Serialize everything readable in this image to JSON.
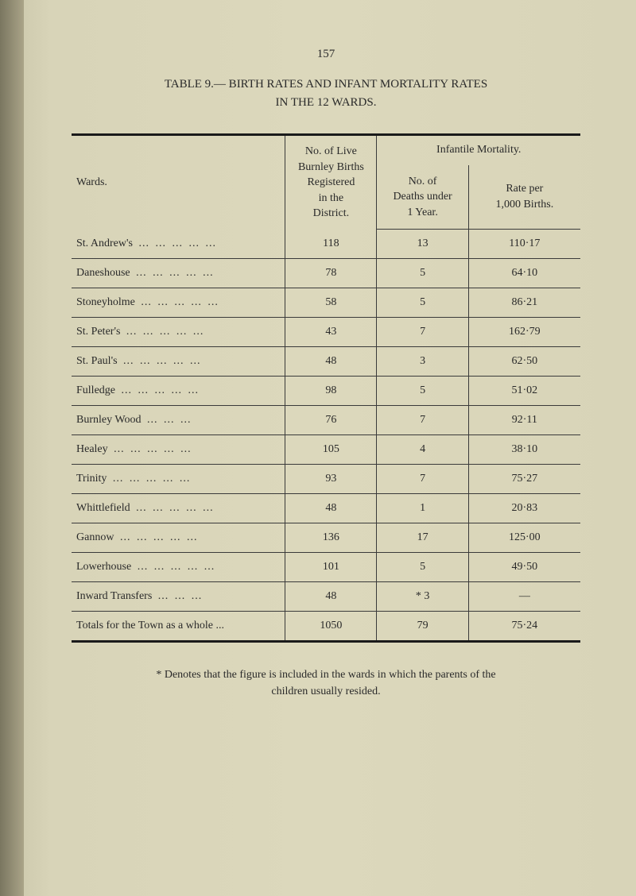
{
  "page_number": "157",
  "title_line1": "TABLE 9.— BIRTH RATES AND INFANT MORTALITY RATES",
  "title_line2": "IN THE 12 WARDS.",
  "headers": {
    "wards": "Wards.",
    "live": "No. of Live\nBurnley Births\nRegistered\nin the\nDistrict.",
    "infantile": "Infantile Mortality.",
    "deaths": "No. of\nDeaths under\n1 Year.",
    "rate": "Rate per\n1,000 Births."
  },
  "rows": [
    {
      "ward": "St. Andrew's",
      "live": "118",
      "deaths": "13",
      "rate": "110·17"
    },
    {
      "ward": "Daneshouse",
      "live": "78",
      "deaths": "5",
      "rate": "64·10"
    },
    {
      "ward": "Stoneyholme",
      "live": "58",
      "deaths": "5",
      "rate": "86·21"
    },
    {
      "ward": "St. Peter's",
      "live": "43",
      "deaths": "7",
      "rate": "162·79"
    },
    {
      "ward": "St. Paul's",
      "live": "48",
      "deaths": "3",
      "rate": "62·50"
    },
    {
      "ward": "Fulledge",
      "live": "98",
      "deaths": "5",
      "rate": "51·02"
    },
    {
      "ward": "Burnley Wood",
      "live": "76",
      "deaths": "7",
      "rate": "92·11"
    },
    {
      "ward": "Healey",
      "live": "105",
      "deaths": "4",
      "rate": "38·10"
    },
    {
      "ward": "Trinity",
      "live": "93",
      "deaths": "7",
      "rate": "75·27"
    },
    {
      "ward": "Whittlefield",
      "live": "48",
      "deaths": "1",
      "rate": "20·83"
    },
    {
      "ward": "Gannow",
      "live": "136",
      "deaths": "17",
      "rate": "125·00"
    },
    {
      "ward": "Lowerhouse",
      "live": "101",
      "deaths": "5",
      "rate": "49·50"
    },
    {
      "ward": "Inward Transfers",
      "live": "48",
      "deaths": "* 3",
      "rate": "—"
    },
    {
      "ward": "Totals for the Town as a whole ...",
      "live": "1050",
      "deaths": "79",
      "rate": "75·24"
    }
  ],
  "footnote": "* Denotes that the figure is included in the wards in which the parents of the\nchildren usually resided."
}
